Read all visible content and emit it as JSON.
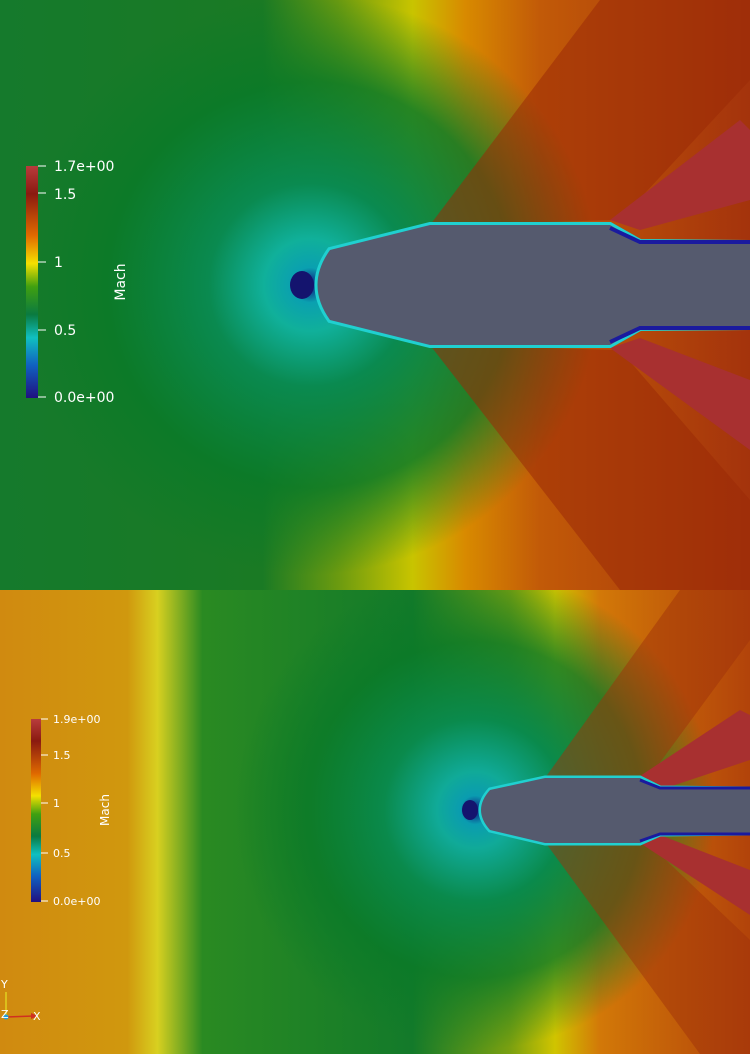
{
  "panels": [
    {
      "name": "top",
      "colorbar": {
        "title": "Mach",
        "ticks": [
          "1.7e+00",
          "1.5",
          "1",
          "0.5",
          "0.0e+00"
        ]
      }
    },
    {
      "name": "bottom",
      "colorbar": {
        "title": "Mach",
        "ticks": [
          "1.9e+00",
          "1.5",
          "1",
          "0.5",
          "0.0e+00"
        ]
      }
    }
  ],
  "axes_triad": {
    "y_label": "Y",
    "z_label": "Z",
    "x_label": "X"
  },
  "colors": {
    "body": "#555a6e",
    "stagnation": "#12127a",
    "subsonic": "#0a7a2a",
    "transonic": "#cccc00",
    "supersonic": "#a0320a",
    "shock": "#a82828"
  }
}
